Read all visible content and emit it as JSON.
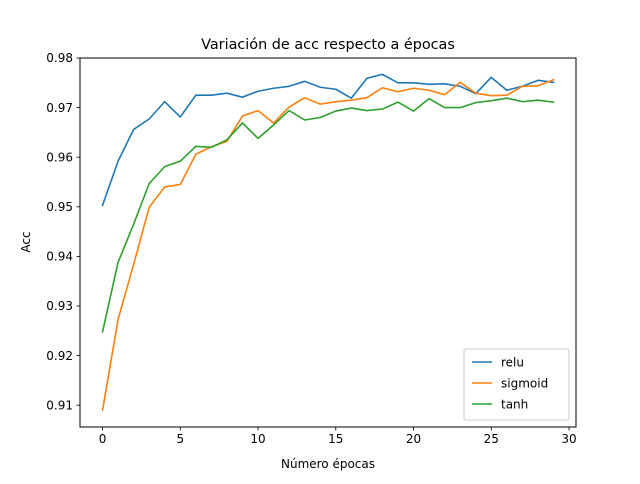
{
  "chart_data": {
    "type": "line",
    "title": "Variación de acc respecto a épocas",
    "xlabel": "Número épocas",
    "ylabel": "Acc",
    "xlim": [
      -1.45,
      30.45
    ],
    "ylim": [
      0.9056,
      0.98
    ],
    "xticks": [
      0,
      5,
      10,
      15,
      20,
      25,
      30
    ],
    "yticks": [
      0.91,
      0.92,
      0.93,
      0.94,
      0.95,
      0.96,
      0.97,
      0.98
    ],
    "ytick_labels": [
      "0.91",
      "0.92",
      "0.93",
      "0.94",
      "0.95",
      "0.96",
      "0.97",
      "0.98"
    ],
    "grid": false,
    "legend_position": "lower-right",
    "x": [
      0,
      1,
      2,
      3,
      4,
      5,
      6,
      7,
      8,
      9,
      10,
      11,
      12,
      13,
      14,
      15,
      16,
      17,
      18,
      19,
      20,
      21,
      22,
      23,
      24,
      25,
      26,
      27,
      28,
      29
    ],
    "series": [
      {
        "name": "relu",
        "color": "#1f77b4",
        "values": [
          0.9503,
          0.9592,
          0.9656,
          0.9677,
          0.9712,
          0.9681,
          0.9725,
          0.9725,
          0.9729,
          0.9721,
          0.9733,
          0.9739,
          0.9743,
          0.9753,
          0.9741,
          0.9737,
          0.9719,
          0.9759,
          0.9767,
          0.975,
          0.975,
          0.9747,
          0.9748,
          0.9743,
          0.9728,
          0.9761,
          0.9735,
          0.9743,
          0.9755,
          0.9751
        ]
      },
      {
        "name": "sigmoid",
        "color": "#ff7f0e",
        "values": [
          0.909,
          0.9273,
          0.9384,
          0.9499,
          0.954,
          0.9545,
          0.9606,
          0.9621,
          0.9632,
          0.9683,
          0.9694,
          0.9669,
          0.9701,
          0.972,
          0.9707,
          0.9712,
          0.9715,
          0.972,
          0.974,
          0.9732,
          0.9739,
          0.9735,
          0.9726,
          0.9751,
          0.9729,
          0.9724,
          0.9725,
          0.9743,
          0.9744,
          0.9756
        ]
      },
      {
        "name": "tanh",
        "color": "#2ca02c",
        "values": [
          0.9248,
          0.9388,
          0.9465,
          0.9547,
          0.9581,
          0.9592,
          0.9622,
          0.962,
          0.9635,
          0.9669,
          0.9638,
          0.9665,
          0.9694,
          0.9675,
          0.968,
          0.9693,
          0.9699,
          0.9694,
          0.9697,
          0.9711,
          0.9693,
          0.9718,
          0.97,
          0.97,
          0.971,
          0.9714,
          0.9719,
          0.9712,
          0.9715,
          0.9711
        ]
      }
    ]
  }
}
